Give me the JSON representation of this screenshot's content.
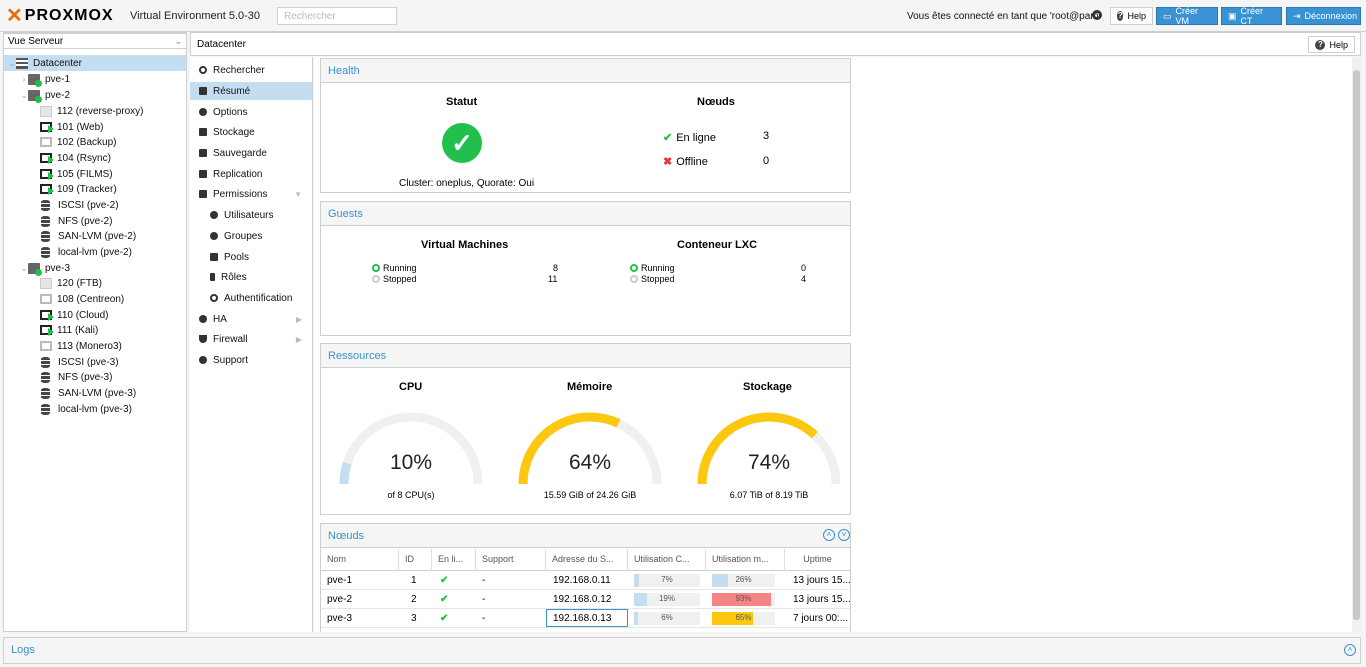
{
  "header": {
    "brand": "PROXMOX",
    "version": "Virtual Environment 5.0-30",
    "search_placeholder": "Rechercher",
    "user_text": "Vous êtes connecté en tant que 'root@pam'",
    "help": "Help",
    "create_vm": "Créer VM",
    "create_ct": "Créer CT",
    "logout": "Déconnexion"
  },
  "tree": {
    "view": "Vue Serveur",
    "items": [
      {
        "label": "Datacenter"
      },
      {
        "label": "pve-1"
      },
      {
        "label": "pve-2"
      },
      {
        "label": "112 (reverse-proxy)"
      },
      {
        "label": "101 (Web)"
      },
      {
        "label": "102 (Backup)"
      },
      {
        "label": "104 (Rsync)"
      },
      {
        "label": "105 (FILMS)"
      },
      {
        "label": "109 (Tracker)"
      },
      {
        "label": "ISCSI (pve-2)"
      },
      {
        "label": "NFS (pve-2)"
      },
      {
        "label": "SAN-LVM (pve-2)"
      },
      {
        "label": "local-lvm (pve-2)"
      },
      {
        "label": "pve-3"
      },
      {
        "label": "120 (FTB)"
      },
      {
        "label": "108 (Centreon)"
      },
      {
        "label": "110 (Cloud)"
      },
      {
        "label": "111 (Kali)"
      },
      {
        "label": "113 (Monero3)"
      },
      {
        "label": "ISCSI (pve-3)"
      },
      {
        "label": "NFS (pve-3)"
      },
      {
        "label": "SAN-LVM (pve-3)"
      },
      {
        "label": "local-lvm (pve-3)"
      }
    ]
  },
  "crumb": {
    "title": "Datacenter",
    "help": "Help"
  },
  "nav": {
    "items": [
      {
        "label": "Rechercher"
      },
      {
        "label": "Résumé"
      },
      {
        "label": "Options"
      },
      {
        "label": "Stockage"
      },
      {
        "label": "Sauvegarde"
      },
      {
        "label": "Replication"
      },
      {
        "label": "Permissions"
      },
      {
        "label": "Utilisateurs"
      },
      {
        "label": "Groupes"
      },
      {
        "label": "Pools"
      },
      {
        "label": "Rôles"
      },
      {
        "label": "Authentification"
      },
      {
        "label": "HA"
      },
      {
        "label": "Firewall"
      },
      {
        "label": "Support"
      }
    ]
  },
  "health": {
    "title": "Health",
    "status_title": "Statut",
    "cluster_text": "Cluster: oneplus, Quorate: Oui",
    "nodes_title": "Nœuds",
    "online_label": "En ligne",
    "online_count": "3",
    "offline_label": "Offline",
    "offline_count": "0"
  },
  "guests": {
    "title": "Guests",
    "vm_title": "Virtual Machines",
    "vm_running_label": "Running",
    "vm_running": "8",
    "vm_stopped_label": "Stopped",
    "vm_stopped": "11",
    "lxc_title": "Conteneur LXC",
    "lxc_running_label": "Running",
    "lxc_running": "0",
    "lxc_stopped_label": "Stopped",
    "lxc_stopped": "4"
  },
  "resources": {
    "title": "Ressources",
    "cpu": {
      "title": "CPU",
      "value": 0.1,
      "text": "10%",
      "sub": "of 8 CPU(s)",
      "color": "#c4ddf1"
    },
    "mem": {
      "title": "Mémoire",
      "value": 0.64,
      "text": "64%",
      "sub": "15.59 GiB of 24.26 GiB",
      "color": "#fcc80f"
    },
    "storage": {
      "title": "Stockage",
      "value": 0.74,
      "text": "74%",
      "sub": "6.07 TiB of 8.19 TiB",
      "color": "#fcc80f"
    }
  },
  "nodes": {
    "title": "Nœuds",
    "columns": [
      "Nom",
      "ID",
      "En li...",
      "Support",
      "Adresse du S...",
      "Utilisation C...",
      "Utilisation m...",
      "Uptime"
    ],
    "rows": [
      {
        "name": "pve-1",
        "id": "1",
        "support": "-",
        "ip": "192.168.0.11",
        "cpu": 0.07,
        "cpu_text": "7%",
        "mem": 0.26,
        "mem_text": "26%",
        "mem_color": "#c4ddf1",
        "uptime": "13 jours 15..."
      },
      {
        "name": "pve-2",
        "id": "2",
        "support": "-",
        "ip": "192.168.0.12",
        "cpu": 0.19,
        "cpu_text": "19%",
        "mem": 0.93,
        "mem_text": "93%",
        "mem_color": "#f78484",
        "uptime": "13 jours 15..."
      },
      {
        "name": "pve-3",
        "id": "3",
        "support": "-",
        "ip": "192.168.0.13",
        "cpu": 0.06,
        "cpu_text": "6%",
        "mem": 0.65,
        "mem_text": "65%",
        "mem_color": "#fcc80f",
        "uptime": "7 jours 00:..."
      }
    ]
  },
  "logs": {
    "title": "Logs"
  }
}
